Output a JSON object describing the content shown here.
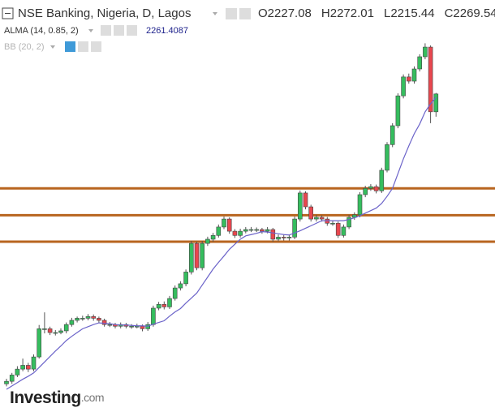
{
  "chart_data": {
    "type": "candlestick",
    "title": "NSE Banking, Nigeria, D, Lagos",
    "ylim": [
      1513,
      2493
    ],
    "up_color": "#35bd5e",
    "down_color": "#e8474f",
    "ohlc_legend": [
      {
        "label": "O",
        "value": 2227.08
      },
      {
        "label": "H",
        "value": 2272.01
      },
      {
        "label": "L",
        "value": 2215.44
      },
      {
        "label": "C",
        "value": 2269.54
      }
    ],
    "open": [
      1580,
      1586,
      1601,
      1615,
      1624,
      1615,
      1644,
      1711,
      1711,
      1702,
      1702,
      1706,
      1721,
      1731,
      1736,
      1736,
      1740,
      1736,
      1731,
      1721,
      1721,
      1717,
      1721,
      1717,
      1717,
      1717,
      1711,
      1721,
      1760,
      1769,
      1763,
      1783,
      1808,
      1818,
      1846,
      1914,
      1856,
      1914,
      1924,
      1933,
      1953,
      1972,
      1943,
      1933,
      1943,
      1947,
      1947,
      1947,
      1943,
      1947,
      1924,
      1929,
      1927,
      1929,
      1972,
      2034,
      2001,
      1972,
      1976,
      1972,
      1962,
      1962,
      1933,
      1953,
      1976,
      1982,
      2030,
      2045,
      2049,
      2039,
      2088,
      2149,
      2194,
      2265,
      2310,
      2300,
      2329,
      2358,
      2381,
      2227.08
    ],
    "high": [
      1592,
      1606,
      1622,
      1640,
      1630,
      1650,
      1720,
      1750,
      1716,
      1708,
      1712,
      1726,
      1737,
      1740,
      1742,
      1746,
      1745,
      1740,
      1735,
      1727,
      1725,
      1726,
      1725,
      1722,
      1723,
      1721,
      1727,
      1766,
      1775,
      1776,
      1789,
      1814,
      1824,
      1852,
      1920,
      1918,
      1920,
      1930,
      1939,
      1959,
      1978,
      1976,
      1948,
      1949,
      1953,
      1953,
      1952,
      1951,
      1953,
      1951,
      1935,
      1934,
      1935,
      1978,
      2040,
      2038,
      2006,
      1982,
      1981,
      1977,
      1968,
      1966,
      1959,
      1982,
      1988,
      2036,
      2051,
      2055,
      2054,
      2094,
      2155,
      2200,
      2271,
      2316,
      2318,
      2335,
      2364,
      2390,
      2385,
      2272.01
    ],
    "low": [
      1574,
      1580,
      1596,
      1610,
      1608,
      1610,
      1640,
      1700,
      1696,
      1695,
      1698,
      1700,
      1716,
      1726,
      1730,
      1731,
      1730,
      1725,
      1716,
      1715,
      1712,
      1712,
      1712,
      1711,
      1712,
      1705,
      1706,
      1716,
      1755,
      1757,
      1758,
      1778,
      1802,
      1812,
      1840,
      1850,
      1850,
      1908,
      1918,
      1928,
      1948,
      1937,
      1927,
      1928,
      1938,
      1941,
      1941,
      1937,
      1938,
      1918,
      1919,
      1921,
      1921,
      1924,
      1966,
      1995,
      1966,
      1966,
      1966,
      1956,
      1956,
      1927,
      1928,
      1948,
      1970,
      1976,
      2024,
      2039,
      2033,
      2034,
      2083,
      2143,
      2188,
      2259,
      2294,
      2294,
      2323,
      2352,
      2200,
      2215.44
    ],
    "close": [
      1586,
      1601,
      1615,
      1624,
      1615,
      1644,
      1711,
      1711,
      1702,
      1702,
      1706,
      1721,
      1731,
      1736,
      1736,
      1740,
      1736,
      1731,
      1721,
      1721,
      1717,
      1721,
      1717,
      1717,
      1717,
      1711,
      1721,
      1760,
      1769,
      1763,
      1783,
      1808,
      1818,
      1846,
      1914,
      1856,
      1914,
      1924,
      1933,
      1953,
      1972,
      1943,
      1933,
      1943,
      1947,
      1947,
      1947,
      1943,
      1947,
      1924,
      1929,
      1927,
      1929,
      1972,
      2034,
      2001,
      1972,
      1976,
      1972,
      1962,
      1962,
      1933,
      1953,
      1976,
      1982,
      2030,
      2045,
      2049,
      2039,
      2088,
      2149,
      2194,
      2265,
      2310,
      2300,
      2329,
      2358,
      2381,
      2227.08,
      2269.54
    ],
    "indicators": [
      {
        "name": "ALMA (14, 0.85, 2)",
        "value": 2261.4087,
        "color": "#6b63c9",
        "values": [
          1567,
          1575,
          1583,
          1591,
          1598,
          1606,
          1619,
          1632,
          1645,
          1658,
          1670,
          1683,
          1693,
          1702,
          1711,
          1716,
          1721,
          1725,
          1724,
          1723,
          1721,
          1720,
          1720,
          1719,
          1718,
          1718,
          1717,
          1722,
          1726,
          1730,
          1741,
          1751,
          1759,
          1772,
          1784,
          1796,
          1815,
          1834,
          1853,
          1869,
          1884,
          1900,
          1912,
          1924,
          1932,
          1935,
          1938,
          1942,
          1941,
          1939,
          1937,
          1935,
          1934,
          1939,
          1944,
          1950,
          1956,
          1962,
          1968,
          1968,
          1968,
          1968,
          1968,
          1971,
          1975,
          1980,
          1986,
          1992,
          1998,
          2009,
          2026,
          2045,
          2080,
          2115,
          2146,
          2175,
          2198,
          2227,
          2246,
          2261.4087
        ]
      },
      {
        "name": "BB (20, 2)"
      }
    ],
    "levels": [
      {
        "value": 2045,
        "color": "#b8651f"
      },
      {
        "value": 1981,
        "color": "#b8651f"
      },
      {
        "value": 1918,
        "color": "#b8651f"
      }
    ],
    "watermark": [
      "Investing",
      ".com"
    ]
  }
}
